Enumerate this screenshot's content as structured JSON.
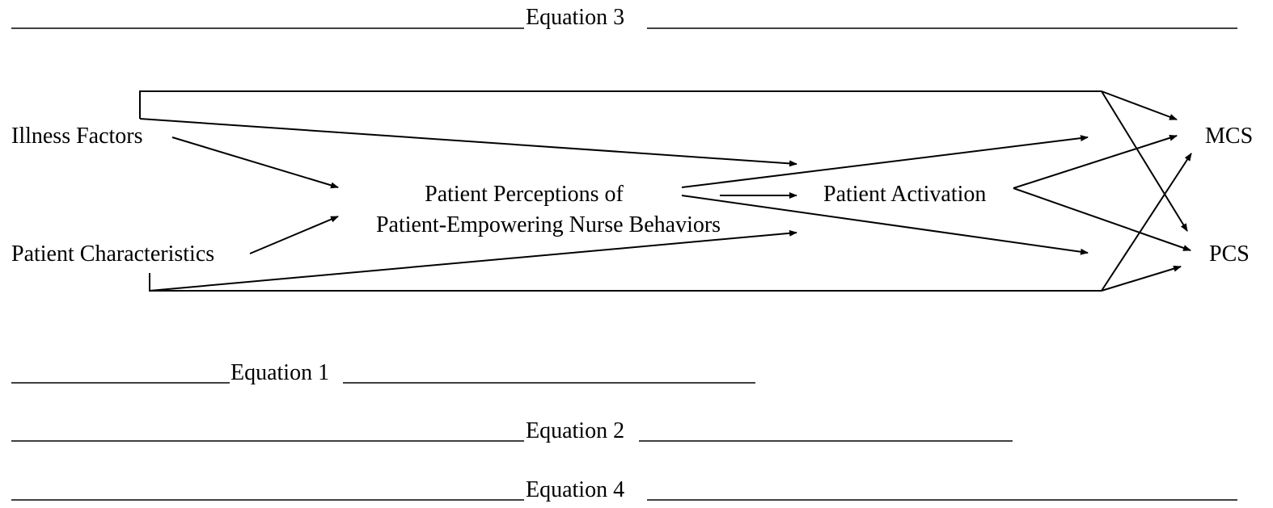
{
  "equations": [
    {
      "label": "Equation 3"
    },
    {
      "label": "Equation 1"
    },
    {
      "label": "Equation 2"
    },
    {
      "label": "Equation 4"
    }
  ],
  "nodes": [
    {
      "label": "Illness Factors"
    },
    {
      "label": "Patient Characteristics"
    },
    {
      "lines": [
        "Patient Perceptions of",
        "Patient-Empowering Nurse Behaviors"
      ]
    },
    {
      "label": "Patient Activation"
    },
    {
      "label": "MCS"
    },
    {
      "label": "PCS"
    }
  ]
}
